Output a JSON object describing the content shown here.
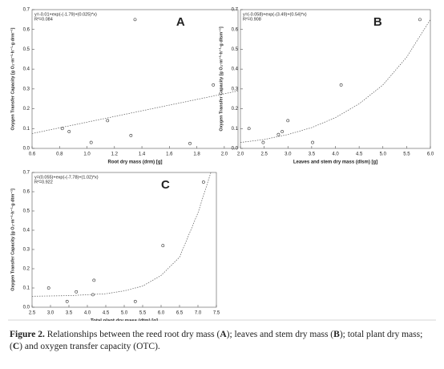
{
  "chart_data": [
    {
      "type": "scatter",
      "panel_label": "A",
      "equation": "y=-0.01+exp(-(-1.79)+(0.025)*x)",
      "r2": "R²=0.084",
      "x_label": "Root dry mass (drm) [g]",
      "y_label": "Oxygen Transfer Capacity [g O₂·m⁻²·h⁻¹·g drm⁻¹]",
      "x": [
        0.82,
        0.87,
        1.03,
        1.15,
        1.32,
        1.35,
        1.75,
        1.92
      ],
      "values": [
        0.1,
        0.085,
        0.03,
        0.14,
        0.065,
        0.65,
        0.025,
        0.32
      ],
      "trend": {
        "x": [
          0.6,
          2.1
        ],
        "values": [
          0.075,
          0.29
        ]
      },
      "xlim": [
        0.6,
        2.1
      ],
      "ylim": [
        0,
        0.7
      ],
      "xticks": [
        0.6,
        0.8,
        {
          "value": 1,
          "label": "1.0"
        },
        1.2,
        1.4,
        1.6,
        1.8,
        {
          "value": 2,
          "label": "2.0"
        }
      ],
      "yticks": [
        {
          "value": 0,
          "label": "0.0"
        },
        0.1,
        0.2,
        0.3,
        0.4,
        0.5,
        0.6,
        0.7
      ]
    },
    {
      "type": "scatter",
      "panel_label": "B",
      "equation": "y=(-0.058)+exp(-(3.49)+(0.54)*x)",
      "r2": "R²=0.908",
      "x_label": "Leaves and stem dry mass (dlsm) [g]",
      "y_label": "Oxygen Transfer Capacity [g O₂·m⁻²·h⁻¹·g dlsm⁻¹]",
      "x": [
        2.18,
        2.48,
        2.8,
        2.88,
        3.0,
        3.52,
        4.12,
        5.78
      ],
      "values": [
        0.1,
        0.03,
        0.07,
        0.085,
        0.14,
        0.03,
        0.32,
        0.65
      ],
      "trend": {
        "x": [
          2.0,
          2.5,
          3.0,
          3.5,
          4.0,
          4.5,
          5.0,
          5.5,
          6.0
        ],
        "values": [
          0.03,
          0.045,
          0.07,
          0.105,
          0.155,
          0.225,
          0.32,
          0.46,
          0.65
        ]
      },
      "xlim": [
        2.0,
        6.0
      ],
      "ylim": [
        0,
        0.7
      ],
      "xticks": [
        {
          "value": 2,
          "label": "2.0"
        },
        2.5,
        {
          "value": 3,
          "label": "3.0"
        },
        3.5,
        {
          "value": 4,
          "label": "4.0"
        },
        4.5,
        {
          "value": 5,
          "label": "5.0"
        },
        5.5,
        {
          "value": 6,
          "label": "6.0"
        }
      ],
      "yticks": [
        {
          "value": 0,
          "label": "0.0"
        },
        0.1,
        0.2,
        0.3,
        0.4,
        0.5,
        0.6,
        0.7
      ]
    },
    {
      "type": "scatter",
      "panel_label": "C",
      "equation": "y=(0.055)+exp(-(-7.78)+(1.02)*x)",
      "r2": "R²=0.922",
      "x_label": "Total plant dry mass (dtm) [g]",
      "y_label": "Oxygen Transfer Capacity [g O₂·m⁻²·h⁻¹·g dtm⁻¹]",
      "x": [
        2.95,
        3.45,
        3.7,
        4.15,
        4.18,
        5.3,
        6.05,
        7.15
      ],
      "values": [
        0.1,
        0.03,
        0.08,
        0.065,
        0.14,
        0.03,
        0.32,
        0.65
      ],
      "trend": {
        "x": [
          2.5,
          3.5,
          4.5,
          5.0,
          5.5,
          6.0,
          6.5,
          7.0,
          7.35
        ],
        "values": [
          0.057,
          0.06,
          0.07,
          0.085,
          0.11,
          0.165,
          0.26,
          0.49,
          0.7
        ]
      },
      "xlim": [
        2.5,
        7.5
      ],
      "ylim": [
        0,
        0.7
      ],
      "xticks": [
        2.5,
        {
          "value": 3,
          "label": "3.0"
        },
        3.5,
        {
          "value": 4,
          "label": "4.0"
        },
        4.5,
        {
          "value": 5,
          "label": "5.0"
        },
        5.5,
        {
          "value": 6,
          "label": "6.0"
        },
        6.5,
        {
          "value": 7,
          "label": "7.0"
        },
        7.5
      ],
      "yticks": [
        {
          "value": 0,
          "label": "0.0"
        },
        0.1,
        0.2,
        0.3,
        0.4,
        0.5,
        0.6,
        0.7
      ]
    }
  ],
  "caption": [
    {
      "text": "Figure 2.",
      "bold": true
    },
    {
      "text": " Relationships between the reed root dry mass ("
    },
    {
      "text": "A",
      "bold": true
    },
    {
      "text": "); leaves and stem dry mass ("
    },
    {
      "text": "B",
      "bold": true
    },
    {
      "text": "); total plant dry mass; ("
    },
    {
      "text": "C",
      "bold": true
    },
    {
      "text": ") and oxygen transfer capacity (OTC)."
    }
  ]
}
